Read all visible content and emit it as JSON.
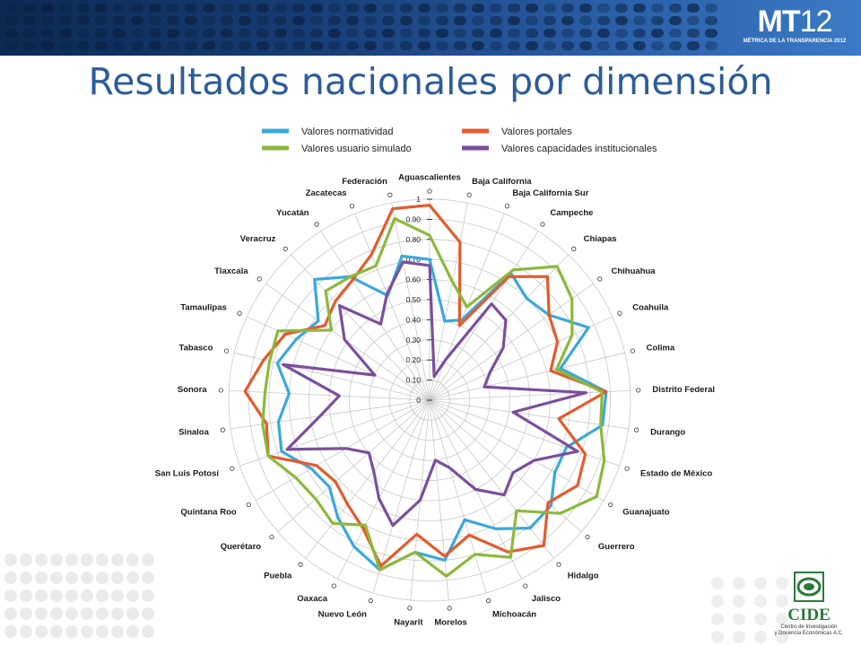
{
  "header": {
    "logo_main": "MT",
    "logo_num": "12",
    "logo_sub": "MÉTRICA DE LA TRANSPARENCIA 2012"
  },
  "title": "Resultados nacionales por dimensión",
  "footer": {
    "cide_label": "CIDE",
    "cide_sub_1": "Centro de Investigación",
    "cide_sub_2": "y Docencia Económicas A.C."
  },
  "chart_data": {
    "type": "radar",
    "legend_placement": "top",
    "grid": true,
    "rlim": [
      0,
      1
    ],
    "r_ticks": [
      "0",
      "0.10",
      "0.20",
      "0.30",
      "0.40",
      "0.50",
      "0.60",
      "0.70",
      "0.80",
      "0.90",
      "1"
    ],
    "categories": [
      "Aguascalientes",
      "Baja California",
      "Baja California Sur",
      "Campeche",
      "Chiapas",
      "Chihuahua",
      "Coahuila",
      "Colima",
      "Distrito Federal",
      "Durango",
      "Estado de México",
      "Guanajuato",
      "Guerrero",
      "Hidalgo",
      "Jalisco",
      "Michoacán",
      "Morelos",
      "Nayarit",
      "Nuevo León",
      "Oaxaca",
      "Puebla",
      "Querétaro",
      "Quintana Roo",
      "San Luis Potosí",
      "Sinaloa",
      "Sonora",
      "Tabasco",
      "Tamaulipas",
      "Tlaxcala",
      "Veracruz",
      "Yucatán",
      "Zacatecas",
      "Federación"
    ],
    "series": [
      {
        "name": "Valores normatividad",
        "color": "#3aa8db",
        "values": [
          0.7,
          0.4,
          0.43,
          0.75,
          0.7,
          0.73,
          0.87,
          0.67,
          0.88,
          0.87,
          0.72,
          0.72,
          0.8,
          0.81,
          0.72,
          0.62,
          0.8,
          0.76,
          0.88,
          0.82,
          0.74,
          0.66,
          0.68,
          0.78,
          0.76,
          0.7,
          0.78,
          0.73,
          0.68,
          0.83,
          0.73,
          0.56,
          0.73
        ]
      },
      {
        "name": "Valores portales",
        "color": "#e35b2c",
        "values": [
          0.97,
          0.8,
          0.4,
          0.73,
          0.85,
          0.73,
          0.7,
          0.62,
          0.88,
          0.65,
          0.82,
          0.85,
          0.78,
          0.92,
          0.85,
          0.7,
          0.78,
          0.67,
          0.86,
          0.72,
          0.66,
          0.62,
          0.65,
          0.85,
          0.82,
          0.92,
          0.85,
          0.79,
          0.64,
          0.68,
          0.71,
          0.78,
          0.97
        ]
      },
      {
        "name": "Valores usuario simulado",
        "color": "#8db83c",
        "values": [
          0.82,
          0.6,
          0.5,
          0.77,
          0.92,
          0.87,
          0.78,
          0.65,
          0.86,
          0.86,
          0.92,
          0.96,
          0.86,
          0.7,
          0.88,
          0.8,
          0.88,
          0.76,
          0.88,
          0.7,
          0.78,
          0.75,
          0.77,
          0.85,
          0.84,
          0.82,
          0.82,
          0.83,
          0.6,
          0.75,
          0.73,
          0.72,
          0.92
        ]
      },
      {
        "name": "Valores capacidades institucionales",
        "color": "#7b4f9c",
        "values": [
          0.67,
          0.12,
          0.22,
          0.57,
          0.55,
          0.45,
          0.33,
          0.28,
          0.78,
          0.42,
          0.78,
          0.6,
          0.55,
          0.6,
          0.5,
          0.35,
          0.3,
          0.5,
          0.65,
          0.55,
          0.45,
          0.4,
          0.48,
          0.75,
          0.55,
          0.45,
          0.75,
          0.3,
          0.52,
          0.65,
          0.45,
          0.57,
          0.7
        ]
      }
    ]
  }
}
